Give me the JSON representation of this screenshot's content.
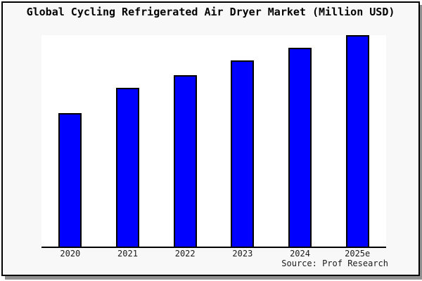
{
  "title": "Global Cycling Refrigerated Air Dryer Market (Million USD)",
  "source": "Source: Prof Research",
  "colors": {
    "bar_fill": "#0000FF",
    "bar_border": "#000000",
    "figure_bg": "#F8F8F8",
    "plot_bg": "#FFFFFF",
    "figure_border": "#000000",
    "shadow": "#909090",
    "axis": "#000000",
    "text": "#1A1A1A"
  },
  "chart_data": {
    "type": "bar",
    "title": "Global Cycling Refrigerated Air Dryer Market (Million USD)",
    "categories": [
      "2020",
      "2021",
      "2022",
      "2023",
      "2024",
      "2025e"
    ],
    "values": [
      63,
      75,
      81,
      88,
      94,
      100
    ],
    "values_note": "estimated relative index; chart shows no y-axis tick labels, tallest bar (2025e) reaches plot top",
    "xlabel": "",
    "ylabel": "",
    "ylim": [
      0,
      100
    ],
    "grid": false,
    "legend": false,
    "annotations": [
      "Source: Prof Research"
    ]
  }
}
